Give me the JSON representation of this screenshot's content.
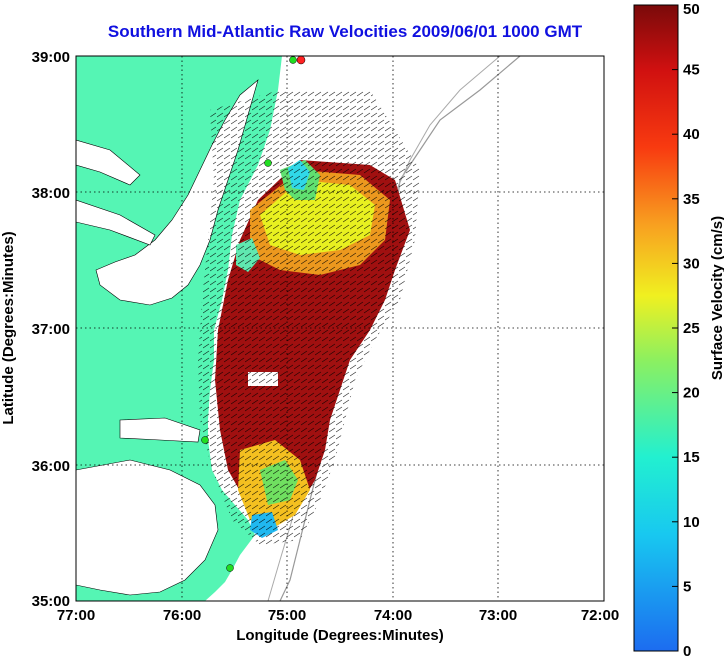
{
  "title": "Southern Mid-Atlantic Raw Velocities 2009/06/01 1000 GMT",
  "xlabel": "Longitude (Degrees:Minutes)",
  "ylabel": "Latitude (Degrees:Minutes)",
  "x_ticks": [
    "77:00",
    "76:00",
    "75:00",
    "74:00",
    "73:00",
    "72:00"
  ],
  "y_ticks": [
    "39:00",
    "38:00",
    "37:00",
    "36:00",
    "35:00"
  ],
  "colorbar": {
    "label": "Surface Velocity (cm/s)",
    "ticks": [
      "0",
      "5",
      "10",
      "15",
      "20",
      "25",
      "30",
      "35",
      "40",
      "45",
      "50"
    ],
    "range": [
      0,
      50
    ]
  },
  "colors": {
    "land": "#55f5b4",
    "title": "#1010e0",
    "station_marker": "#22dd22",
    "station_marker_active": "#ff2222"
  }
}
